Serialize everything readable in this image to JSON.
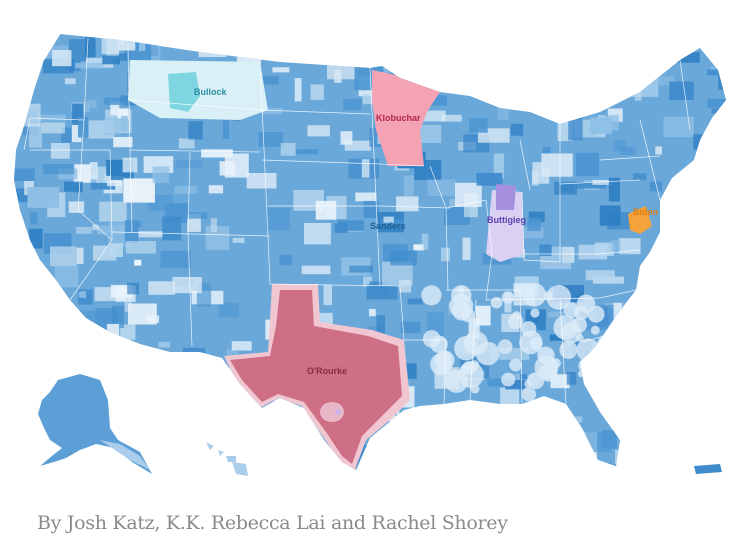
{
  "map": {
    "labels": {
      "bullock": "Bullock",
      "klobuchar": "Klobuchar",
      "sanders": "Sanders",
      "buttigieg": "Buttigieg",
      "biden": "Biden",
      "orourke": "O'Rourke"
    },
    "colors": {
      "sanders": "#5b9fd6",
      "sanders_dark": "#3f8bcc",
      "sanders_light": "#a9cdea",
      "bullock": "#7fd6e0",
      "klobuchar": "#f4a3b4",
      "orourke": "#cf6f86",
      "buttigieg": "#a78fe0",
      "biden": "#f4a23b"
    }
  },
  "byline": "By Josh Katz, K.K. Rebecca Lai and Rachel Shorey"
}
